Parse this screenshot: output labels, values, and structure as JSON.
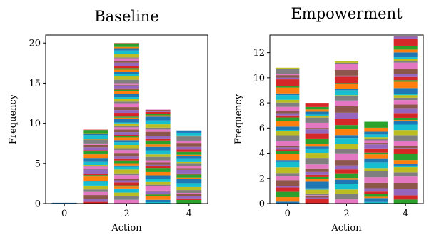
{
  "chart_data": [
    {
      "type": "bar",
      "stacked": true,
      "title": "Baseline",
      "xlabel": "Action",
      "ylabel": "Frequency",
      "categories": [
        0,
        1,
        2,
        3,
        4
      ],
      "values": [
        0.1,
        9.2,
        20.0,
        11.7,
        9.1
      ],
      "xlim": [
        -0.6,
        4.6
      ],
      "ylim": [
        0,
        21
      ],
      "xticks": [
        "0",
        "2",
        "4"
      ],
      "yticks": [
        "0",
        "5",
        "10",
        "15",
        "20"
      ],
      "grid": false,
      "legend": "none"
    },
    {
      "type": "bar",
      "stacked": true,
      "title": "Empowerment",
      "xlabel": "Action",
      "ylabel": "Frequency",
      "categories": [
        0,
        1,
        2,
        3,
        4
      ],
      "values": [
        10.8,
        8.0,
        11.3,
        6.5,
        13.3
      ],
      "xlim": [
        -0.6,
        4.6
      ],
      "ylim": [
        0,
        13.4
      ],
      "xticks": [
        "0",
        "2",
        "4"
      ],
      "yticks": [
        "0",
        "2",
        "4",
        "6",
        "8",
        "10",
        "12"
      ],
      "grid": false,
      "legend": "none"
    }
  ],
  "colors": [
    "#1f77b4",
    "#ff7f0e",
    "#2ca02c",
    "#d62728",
    "#9467bd",
    "#8c564b",
    "#e377c2",
    "#7f7f7f",
    "#bcbd22",
    "#17becf"
  ]
}
